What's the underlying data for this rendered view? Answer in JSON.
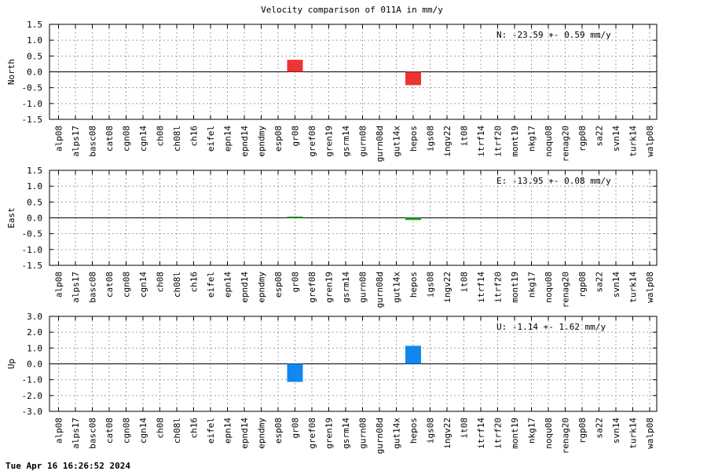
{
  "footer": "Tue Apr 16 16:26:52 2024",
  "chart_data": {
    "type": "bar",
    "title": "Velocity comparison of 011A in mm/y",
    "categories": [
      "alp08",
      "alps17",
      "basc08",
      "cat08",
      "cgn08",
      "cgn14",
      "ch08",
      "ch08l",
      "ch16",
      "eifel",
      "epn14",
      "epnd14",
      "epndmy",
      "esp08",
      "gr08",
      "gref08",
      "gren19",
      "gsrm14",
      "gurn08",
      "gurn08d",
      "gut14x",
      "hepos",
      "igs08",
      "ingv22",
      "it08",
      "itrf14",
      "itrf20",
      "mont19",
      "nkg17",
      "noqu08",
      "renag20",
      "rgp08",
      "sa22",
      "svn14",
      "turk14",
      "walp08"
    ],
    "grid": true,
    "panels": [
      {
        "ylabel": "North",
        "ylim": [
          -1.5,
          1.5
        ],
        "yticks": [
          -1.5,
          -1.0,
          -0.5,
          0.0,
          0.5,
          1.0,
          1.5
        ],
        "ytick_labels": [
          "-1.5",
          "-1.0",
          "-0.5",
          "0.0",
          "0.5",
          "1.0",
          "1.5"
        ],
        "color": "#ee3333",
        "annotation": "N: -23.59 +-  0.59 mm/y",
        "values": [
          null,
          null,
          null,
          null,
          null,
          null,
          null,
          null,
          null,
          null,
          null,
          null,
          null,
          null,
          0.38,
          null,
          null,
          null,
          null,
          null,
          null,
          -0.42,
          null,
          null,
          null,
          null,
          null,
          null,
          null,
          null,
          null,
          null,
          null,
          null,
          null,
          null
        ]
      },
      {
        "ylabel": "East",
        "ylim": [
          -1.5,
          1.5
        ],
        "yticks": [
          -1.5,
          -1.0,
          -0.5,
          0.0,
          0.5,
          1.0,
          1.5
        ],
        "ytick_labels": [
          "-1.5",
          "-1.0",
          "-0.5",
          "0.0",
          "0.5",
          "1.0",
          "1.5"
        ],
        "color": "#22aa22",
        "annotation": "E: -13.95 +-  0.08 mm/y",
        "values": [
          null,
          null,
          null,
          null,
          null,
          null,
          null,
          null,
          null,
          null,
          null,
          null,
          null,
          null,
          0.04,
          null,
          null,
          null,
          null,
          null,
          null,
          -0.07,
          null,
          null,
          null,
          null,
          null,
          null,
          null,
          null,
          null,
          null,
          null,
          null,
          null,
          null
        ]
      },
      {
        "ylabel": "Up",
        "ylim": [
          -3.0,
          3.0
        ],
        "yticks": [
          -3.0,
          -2.0,
          -1.0,
          0.0,
          1.0,
          2.0,
          3.0
        ],
        "ytick_labels": [
          "-3.0",
          "-2.0",
          "-1.0",
          "0.0",
          "1.0",
          "2.0",
          "3.0"
        ],
        "color": "#1188ee",
        "annotation": "U:  -1.14 +-  1.62 mm/y",
        "values": [
          null,
          null,
          null,
          null,
          null,
          null,
          null,
          null,
          null,
          null,
          null,
          null,
          null,
          null,
          -1.14,
          null,
          null,
          null,
          null,
          null,
          null,
          1.14,
          null,
          null,
          null,
          null,
          null,
          null,
          null,
          null,
          null,
          null,
          null,
          null,
          null,
          null
        ]
      }
    ]
  }
}
